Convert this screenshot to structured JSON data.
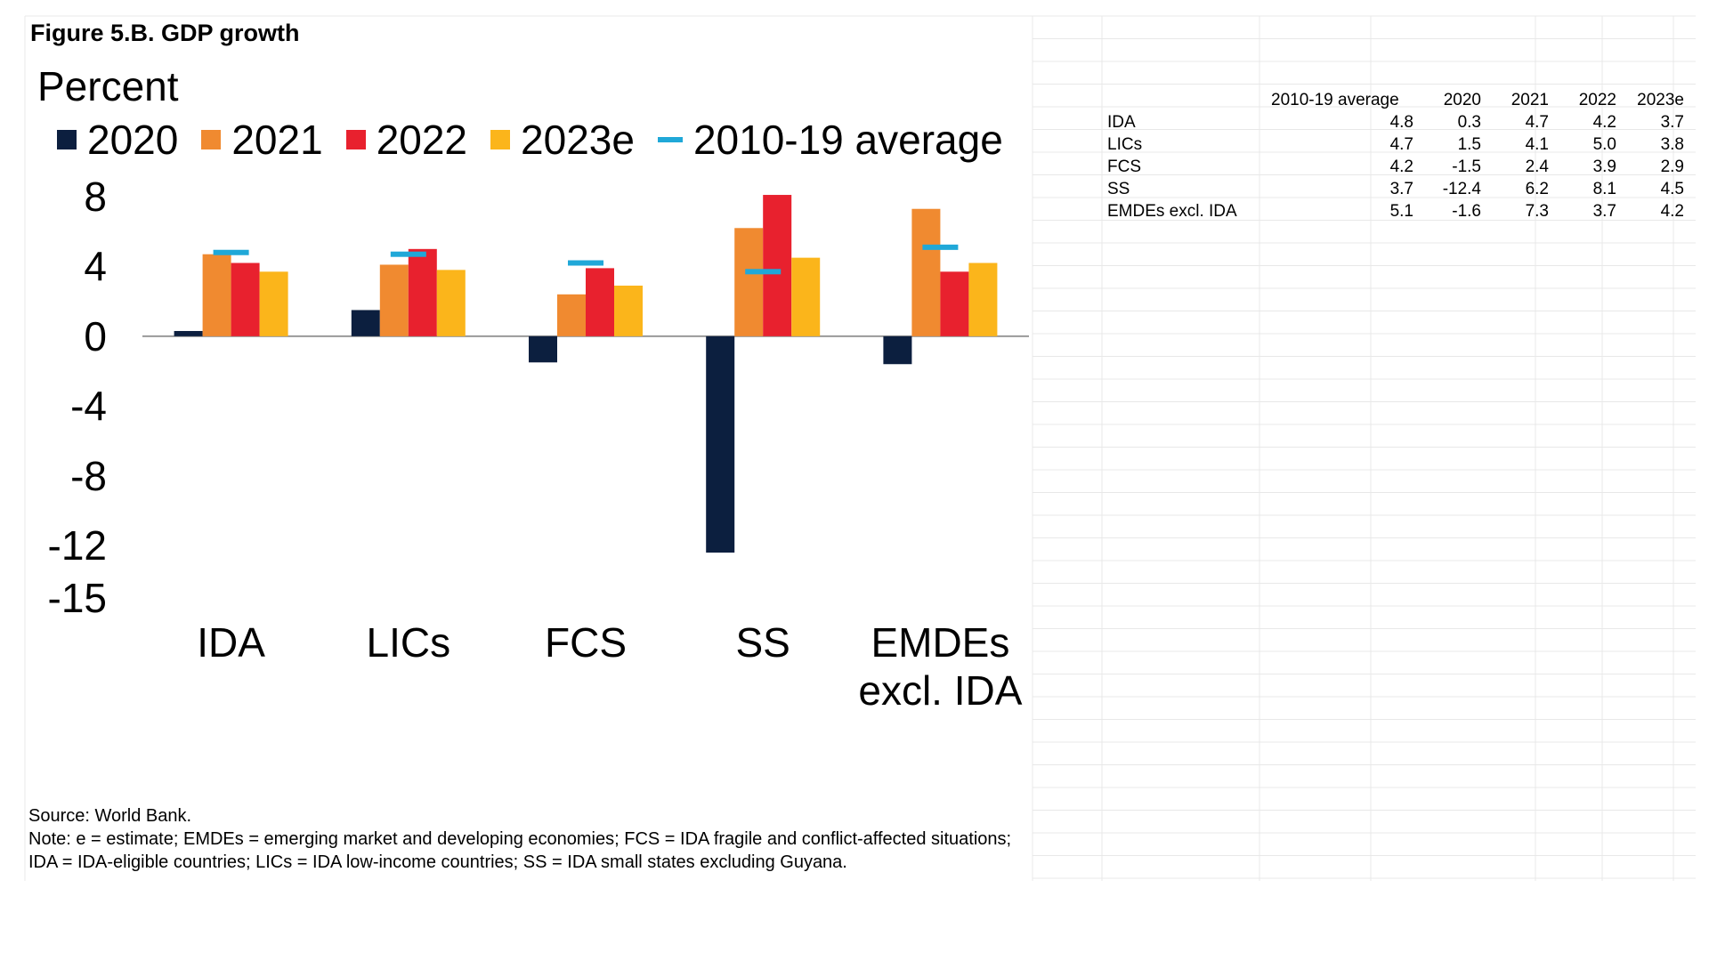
{
  "figure_title": "Figure 5.B. GDP growth",
  "chart_data": {
    "type": "bar",
    "ylabel": "Percent",
    "categories": [
      "IDA",
      "LICs",
      "FCS",
      "SS",
      "EMDEs excl. IDA"
    ],
    "category_lines": [
      [
        "IDA"
      ],
      [
        "LICs"
      ],
      [
        "FCS"
      ],
      [
        "SS"
      ],
      [
        "EMDEs",
        "excl. IDA"
      ]
    ],
    "series": [
      {
        "name": "2020",
        "color": "#0c1f3f",
        "values": [
          0.3,
          1.5,
          -1.5,
          -12.4,
          -1.6
        ]
      },
      {
        "name": "2021",
        "color": "#f08a30",
        "values": [
          4.7,
          4.1,
          2.4,
          6.2,
          7.3
        ]
      },
      {
        "name": "2022",
        "color": "#e8212e",
        "values": [
          4.2,
          5.0,
          3.9,
          8.1,
          3.7
        ]
      },
      {
        "name": "2023e",
        "color": "#fbb51b",
        "values": [
          3.7,
          3.8,
          2.9,
          4.5,
          4.2
        ]
      }
    ],
    "average": {
      "name": "2010-19 average",
      "color": "#20a8d8",
      "values": [
        4.8,
        4.7,
        4.2,
        3.7,
        5.1
      ]
    },
    "ylim": [
      -15,
      8
    ],
    "yticks": [
      8,
      4,
      0,
      -4,
      -8,
      -12,
      -15
    ],
    "grid": false,
    "legend_position": "top"
  },
  "table": {
    "headers": [
      "",
      "2010-19 average",
      "2020",
      "2021",
      "2022",
      "2023e"
    ],
    "rows": [
      [
        "IDA",
        "4.8",
        "0.3",
        "4.7",
        "4.2",
        "3.7"
      ],
      [
        "LICs",
        "4.7",
        "1.5",
        "4.1",
        "5.0",
        "3.8"
      ],
      [
        "FCS",
        "4.2",
        "-1.5",
        "2.4",
        "3.9",
        "2.9"
      ],
      [
        "SS",
        "3.7",
        "-12.4",
        "6.2",
        "8.1",
        "4.5"
      ],
      [
        "EMDEs excl. IDA",
        "5.1",
        "-1.6",
        "7.3",
        "3.7",
        "4.2"
      ]
    ]
  },
  "source": "Source: World Bank.",
  "note": "Note: e = estimate; EMDEs = emerging market and developing economies; FCS = IDA fragile and conflict-affected situations; IDA = IDA-eligible countries; LICs = IDA low-income countries; SS = IDA small states excluding Guyana."
}
